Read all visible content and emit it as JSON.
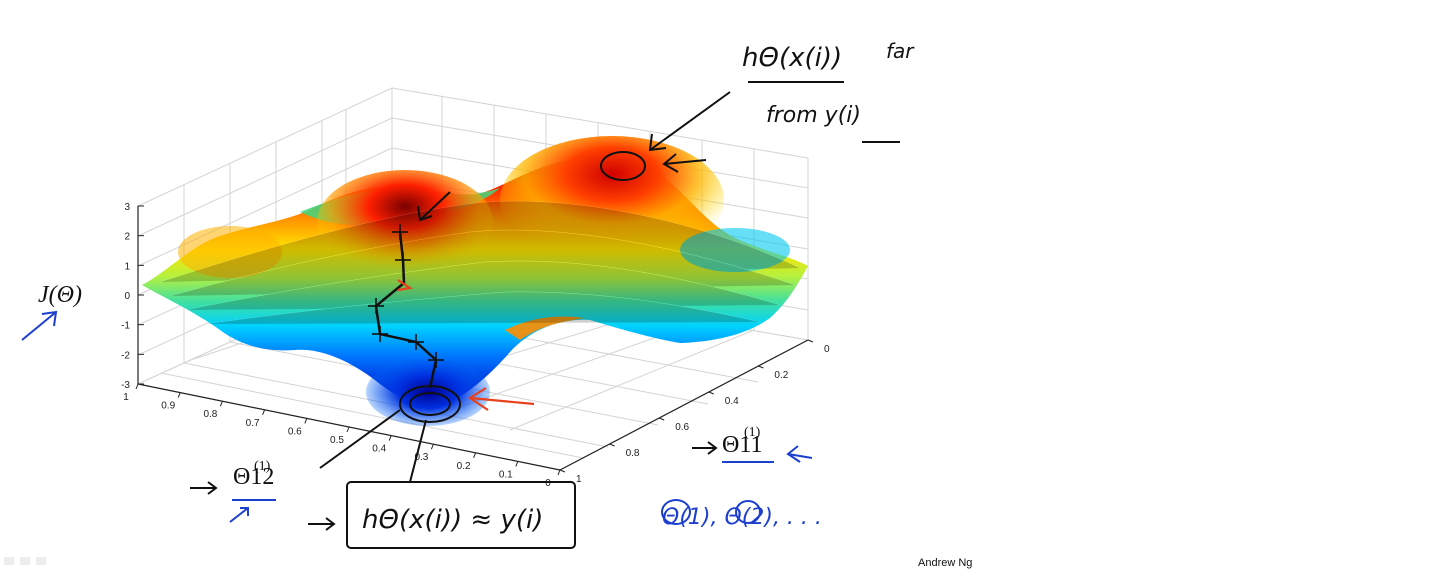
{
  "chart_data": {
    "type": "surface3d",
    "z_label": "J(Θ)",
    "x_label": "Θ12",
    "x_label_superscript": "(1)",
    "y_label": "Θ11",
    "y_label_superscript": "(1)",
    "z_ticks": [
      "3",
      "2",
      "1",
      "0",
      "-1",
      "-2",
      "-3"
    ],
    "x_ticks": [
      "1",
      "0.9",
      "0.8",
      "0.7",
      "0.6",
      "0.5",
      "0.4",
      "0.3",
      "0.2",
      "0.1",
      "0"
    ],
    "y_ticks": [
      "0",
      "0.2",
      "0.4",
      "0.6",
      "0.8",
      "1"
    ],
    "zlim": [
      -3,
      3
    ],
    "xlim": [
      0,
      1
    ],
    "ylim": [
      0,
      1
    ],
    "grid": true,
    "colormap": [
      "#0000c8",
      "#0078ff",
      "#00d2ff",
      "#40e0a0",
      "#b4f040",
      "#ffe600",
      "#ff9600",
      "#ff2800",
      "#a00000"
    ]
  },
  "annotations": {
    "top_numerator": "hΘ(x(i))",
    "top_word": "far",
    "top_denominator": "from y(i)",
    "bottom_box": "hΘ(x(i)) ≈ y(i)",
    "thetas": "Θ(1), Θ(2), . . ."
  },
  "footer": {
    "credit": "Andrew Ng"
  }
}
